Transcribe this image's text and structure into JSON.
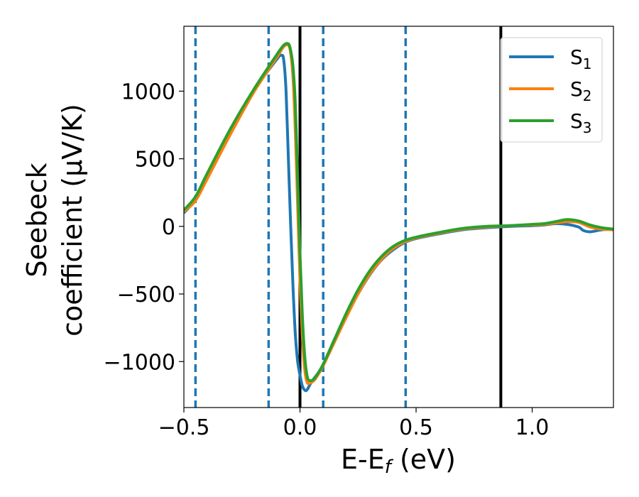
{
  "chart_data": {
    "type": "line",
    "xlabel": "E-E_f (eV)",
    "ylabel_line1": "Seebeck",
    "ylabel_line2": "coefficient  (μV/K)",
    "xlim": [
      -0.5,
      1.35
    ],
    "ylim": [
      -1340,
      1480
    ],
    "xticks": [
      -0.5,
      0.0,
      0.5,
      1.0
    ],
    "xtick_labels": [
      "−0.5",
      "0.0",
      "0.5",
      "1.0"
    ],
    "yticks": [
      -1000,
      -500,
      0,
      500,
      1000
    ],
    "ytick_labels": [
      "−1000",
      "−500",
      "0",
      "500",
      "1000"
    ],
    "grid": false,
    "legend_position": "top-right",
    "vlines_dashed": [
      -0.45,
      -0.135,
      0.1,
      0.455
    ],
    "vlines_solid": [
      0.0,
      0.865
    ],
    "series": [
      {
        "name": "S1",
        "color": "#1f77b4",
        "x": [
          -0.5,
          -0.45,
          -0.4,
          -0.3,
          -0.2,
          -0.1,
          -0.08,
          -0.07,
          -0.06,
          -0.05,
          -0.04,
          -0.03,
          -0.02,
          -0.01,
          0.0,
          0.01,
          0.02,
          0.03,
          0.05,
          0.08,
          0.1,
          0.15,
          0.2,
          0.25,
          0.3,
          0.35,
          0.4,
          0.45,
          0.5,
          0.6,
          0.7,
          0.8,
          0.9,
          1.0,
          1.05,
          1.1,
          1.15,
          1.2,
          1.22,
          1.25,
          1.3,
          1.35
        ],
        "y": [
          100,
          200,
          370,
          700,
          1000,
          1235,
          1265,
          1230,
          1000,
          500,
          0,
          -450,
          -800,
          -1000,
          -1100,
          -1180,
          -1210,
          -1210,
          -1150,
          -1080,
          -1020,
          -840,
          -660,
          -500,
          -360,
          -250,
          -175,
          -120,
          -90,
          -55,
          -25,
          -10,
          0,
          5,
          10,
          20,
          15,
          -5,
          -30,
          -40,
          -25,
          -20
        ]
      },
      {
        "name": "S2",
        "color": "#ff7f0e",
        "x": [
          -0.5,
          -0.45,
          -0.4,
          -0.3,
          -0.2,
          -0.1,
          -0.07,
          -0.05,
          -0.04,
          -0.03,
          -0.02,
          -0.01,
          0.0,
          0.01,
          0.02,
          0.03,
          0.04,
          0.06,
          0.08,
          0.1,
          0.15,
          0.2,
          0.25,
          0.3,
          0.35,
          0.4,
          0.45,
          0.5,
          0.6,
          0.7,
          0.8,
          0.9,
          1.0,
          1.05,
          1.1,
          1.15,
          1.2,
          1.25,
          1.3,
          1.35
        ],
        "y": [
          110,
          190,
          350,
          680,
          990,
          1250,
          1330,
          1340,
          1280,
          1100,
          700,
          150,
          -400,
          -800,
          -1050,
          -1150,
          -1160,
          -1140,
          -1090,
          -1030,
          -850,
          -670,
          -500,
          -355,
          -245,
          -165,
          -115,
          -85,
          -50,
          -20,
          -5,
          5,
          10,
          15,
          25,
          35,
          30,
          -5,
          -20,
          -25
        ]
      },
      {
        "name": "S3",
        "color": "#2ca02c",
        "x": [
          -0.5,
          -0.45,
          -0.4,
          -0.3,
          -0.2,
          -0.1,
          -0.07,
          -0.05,
          -0.04,
          -0.03,
          -0.02,
          -0.01,
          0.0,
          0.01,
          0.02,
          0.03,
          0.04,
          0.06,
          0.08,
          0.1,
          0.15,
          0.2,
          0.25,
          0.3,
          0.35,
          0.4,
          0.45,
          0.5,
          0.6,
          0.7,
          0.8,
          0.9,
          1.0,
          1.05,
          1.1,
          1.15,
          1.2,
          1.25,
          1.3,
          1.35
        ],
        "y": [
          120,
          220,
          390,
          720,
          1010,
          1270,
          1340,
          1350,
          1300,
          1180,
          900,
          350,
          -200,
          -650,
          -950,
          -1100,
          -1140,
          -1130,
          -1080,
          -1020,
          -830,
          -640,
          -470,
          -330,
          -225,
          -150,
          -105,
          -80,
          -45,
          -15,
          0,
          5,
          15,
          20,
          35,
          50,
          40,
          10,
          -10,
          -20
        ]
      }
    ]
  }
}
